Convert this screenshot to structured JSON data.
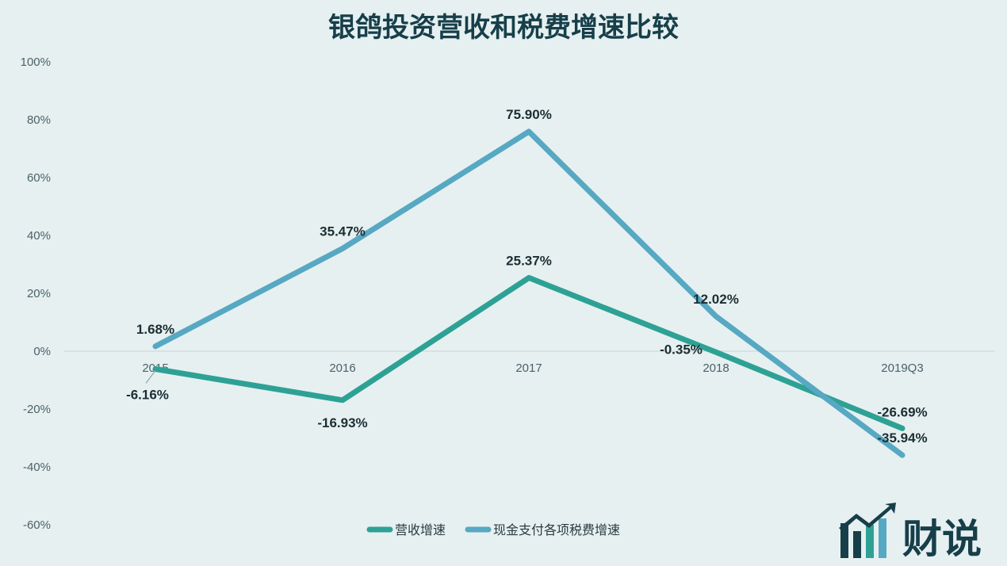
{
  "logo": {
    "text": "财说"
  },
  "chart_data": {
    "type": "line",
    "title": "银鸽投资营收和税费增速比较",
    "categories": [
      "2015",
      "2016",
      "2017",
      "2018",
      "2019Q3"
    ],
    "yticks": [
      "100%",
      "80%",
      "60%",
      "40%",
      "20%",
      "0%",
      "-20%",
      "-40%",
      "-60%"
    ],
    "ylim": [
      -60,
      100
    ],
    "grid": false,
    "legend_position": "bottom",
    "series": [
      {
        "name": "营收增速",
        "color": "#2ea195",
        "values": [
          -6.16,
          -16.93,
          25.37,
          -0.35,
          -26.69
        ],
        "labels": [
          "-6.16%",
          "-16.93%",
          "25.37%",
          "-0.35%",
          "-26.69%"
        ]
      },
      {
        "name": "现金支付各项税费增速",
        "color": "#57a8c2",
        "values": [
          1.68,
          35.47,
          75.9,
          12.02,
          -35.94
        ],
        "labels": [
          "1.68%",
          "35.47%",
          "75.90%",
          "12.02%",
          "-35.94%"
        ]
      }
    ]
  }
}
